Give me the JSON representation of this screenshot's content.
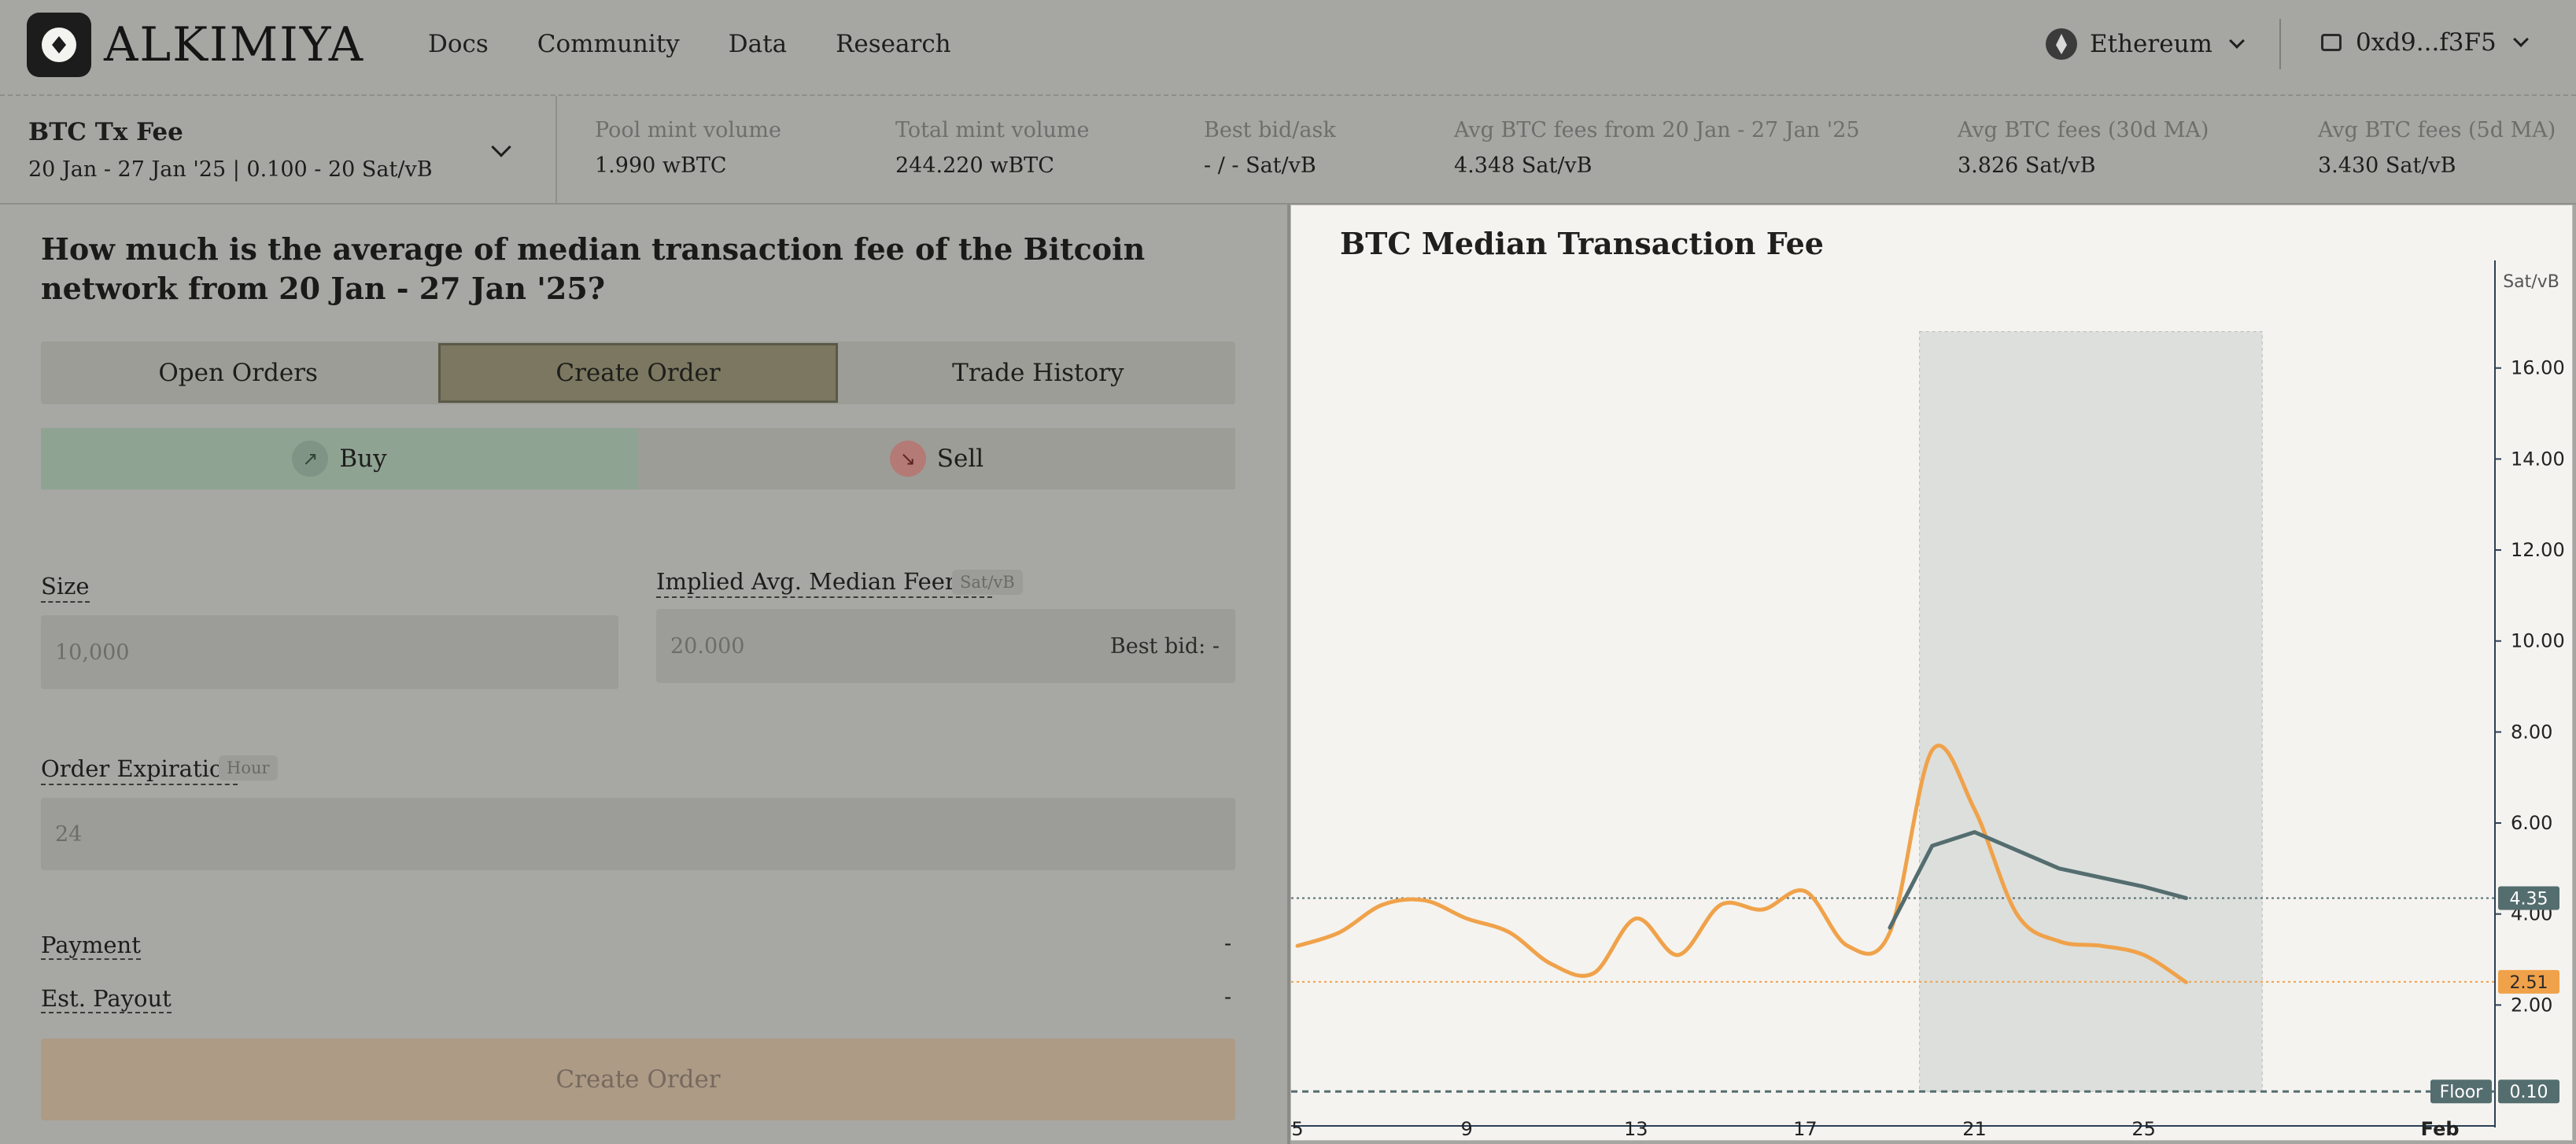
{
  "header": {
    "logo_text": "ALKIMIYA",
    "nav": [
      "Docs",
      "Community",
      "Data",
      "Research"
    ],
    "network": "Ethereum",
    "wallet": "0xd9...f3F5"
  },
  "market": {
    "title": "BTC Tx Fee",
    "subtitle": "20 Jan - 27 Jan '25 | 0.100 - 20 Sat/vB"
  },
  "stats": [
    {
      "label": "Pool mint volume",
      "value": "1.990 wBTC"
    },
    {
      "label": "Total mint volume",
      "value": "244.220 wBTC"
    },
    {
      "label": "Best bid/ask",
      "value": "- / - Sat/vB"
    },
    {
      "label": "Avg BTC fees from 20 Jan - 27 Jan '25",
      "value": "4.348 Sat/vB"
    },
    {
      "label": "Avg BTC fees (30d MA)",
      "value": "3.826 Sat/vB"
    },
    {
      "label": "Avg BTC fees (5d MA)",
      "value": "3.430 Sat/vB"
    }
  ],
  "question": "How much is the average of median transaction fee of the Bitcoin network from 20 Jan - 27 Jan '25?",
  "tabs": [
    "Open Orders",
    "Create Order",
    "Trade History"
  ],
  "side": {
    "buy": "Buy",
    "sell": "Sell"
  },
  "form": {
    "size_label": "Size",
    "size_placeholder": "10,000",
    "feerate_label": "Implied Avg. Median Feerate",
    "feerate_unit": "Sat/vB",
    "feerate_placeholder": "20.000",
    "best_bid": "Best bid: -",
    "expiration_label": "Order Expiration",
    "expiration_unit": "Hour",
    "expiration_placeholder": "24",
    "payment_label": "Payment",
    "payment_value": "-",
    "payout_label": "Est. Payout",
    "payout_value": "-",
    "submit": "Create Order"
  },
  "chart_data": {
    "type": "line",
    "title": "BTC Median Transaction Fee",
    "ylabel": "Sat/vB",
    "ylim": [
      0,
      17.5
    ],
    "yticks": [
      "2.00",
      "4.00",
      "6.00",
      "8.00",
      "10.00",
      "12.00",
      "14.00",
      "16.00"
    ],
    "xticks": [
      "5",
      "9",
      "13",
      "17",
      "21",
      "25",
      "Feb"
    ],
    "highlight_range": [
      "20 Jan",
      "27 Jan"
    ],
    "series": [
      {
        "color": "#f0a24a",
        "x": [
          5,
          6,
          7,
          8,
          9,
          10,
          11,
          12,
          13,
          14,
          15,
          16,
          17,
          18,
          19,
          20,
          21,
          22,
          23,
          24,
          25,
          26
        ],
        "values": [
          3.3,
          3.6,
          4.2,
          4.3,
          3.9,
          3.6,
          2.9,
          2.7,
          3.9,
          3.1,
          4.2,
          4.1,
          4.5,
          3.3,
          3.6,
          7.6,
          6.3,
          4.0,
          3.4,
          3.3,
          3.1,
          2.5
        ]
      },
      {
        "color": "#546d6f",
        "x": [
          19,
          20,
          21,
          22,
          23,
          24,
          25,
          26
        ],
        "values": [
          3.7,
          5.5,
          5.8,
          5.4,
          5.0,
          4.8,
          4.6,
          4.35
        ]
      }
    ],
    "reference_lines": [
      {
        "value": 4.35,
        "label": "4.35",
        "color": "#546d6f"
      },
      {
        "value": 2.51,
        "label": "2.51",
        "color": "#f0a24a"
      },
      {
        "value": 0.1,
        "label": "0.10",
        "tag": "Floor",
        "color": "#546d6f"
      }
    ]
  }
}
